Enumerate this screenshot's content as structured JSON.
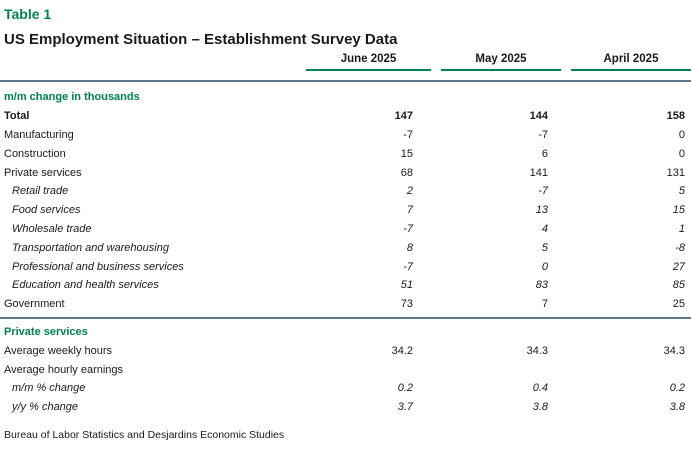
{
  "chart_data": {
    "type": "table",
    "title": "Table 1",
    "subtitle": "US Employment Situation – Establishment Survey Data",
    "columns": [
      "June 2025",
      "May 2025",
      "April 2025"
    ],
    "sections": [
      {
        "header": "m/m change in thousands",
        "rows": [
          {
            "label": "Total",
            "style": "bold",
            "indent": false,
            "values": [
              "147",
              "144",
              "158"
            ]
          },
          {
            "label": "Manufacturing",
            "style": "normal",
            "indent": false,
            "values": [
              "-7",
              "-7",
              "0"
            ]
          },
          {
            "label": "Construction",
            "style": "normal",
            "indent": false,
            "values": [
              "15",
              "6",
              "0"
            ]
          },
          {
            "label": "Private services",
            "style": "normal",
            "indent": false,
            "values": [
              "68",
              "141",
              "131"
            ]
          },
          {
            "label": "Retail trade",
            "style": "italic",
            "indent": true,
            "values": [
              "2",
              "-7",
              "5"
            ]
          },
          {
            "label": "Food services",
            "style": "italic",
            "indent": true,
            "values": [
              "7",
              "13",
              "15"
            ]
          },
          {
            "label": "Wholesale trade",
            "style": "italic",
            "indent": true,
            "values": [
              "-7",
              "4",
              "1"
            ]
          },
          {
            "label": "Transportation and warehousing",
            "style": "italic",
            "indent": true,
            "values": [
              "8",
              "5",
              "-8"
            ]
          },
          {
            "label": "Professional and business services",
            "style": "italic",
            "indent": true,
            "values": [
              "-7",
              "0",
              "27"
            ]
          },
          {
            "label": "Education and health services",
            "style": "italic",
            "indent": true,
            "values": [
              "51",
              "83",
              "85"
            ]
          },
          {
            "label": "Government",
            "style": "normal",
            "indent": false,
            "values": [
              "73",
              "7",
              "25"
            ]
          }
        ]
      },
      {
        "header": "Private services",
        "rows": [
          {
            "label": "Average weekly hours",
            "style": "normal",
            "indent": false,
            "values": [
              "34.2",
              "34.3",
              "34.3"
            ]
          },
          {
            "label": "Average hourly earnings",
            "style": "normal",
            "indent": false,
            "values": [
              "",
              "",
              ""
            ]
          },
          {
            "label": "m/m % change",
            "style": "italic",
            "indent": true,
            "values": [
              "0.2",
              "0.4",
              "0.2"
            ]
          },
          {
            "label": "y/y % change",
            "style": "italic",
            "indent": true,
            "values": [
              "3.7",
              "3.8",
              "3.8"
            ]
          }
        ]
      }
    ],
    "footer": "Bureau of Labor Statistics and Desjardins Economic Studies"
  },
  "colors": {
    "green": "#00824F",
    "divider": "#5C7A8A",
    "text": "#1A1A1A"
  }
}
